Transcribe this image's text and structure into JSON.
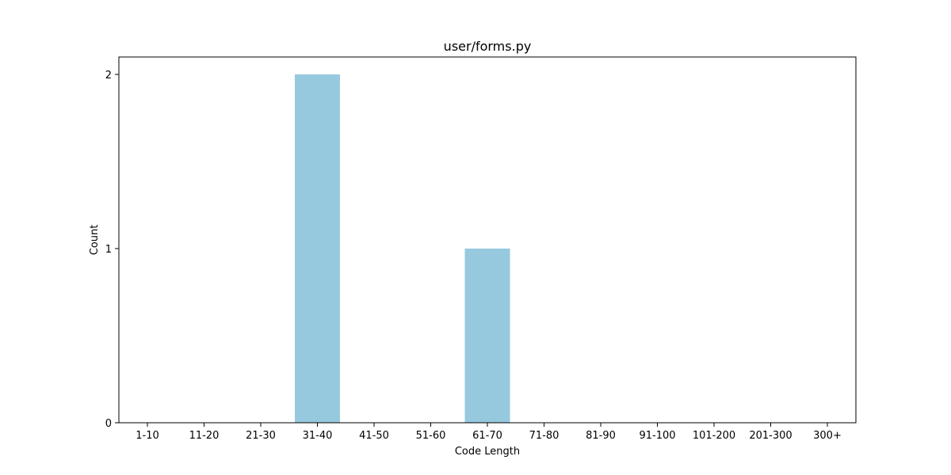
{
  "chart_data": {
    "type": "bar",
    "title": "user/forms.py",
    "xlabel": "Code Length",
    "ylabel": "Count",
    "categories": [
      "1-10",
      "11-20",
      "21-30",
      "31-40",
      "41-50",
      "51-60",
      "61-70",
      "71-80",
      "81-90",
      "91-100",
      "101-200",
      "201-300",
      "300+"
    ],
    "values": [
      0,
      0,
      0,
      2,
      0,
      0,
      1,
      0,
      0,
      0,
      0,
      0,
      0
    ],
    "ylim": [
      0,
      2.1
    ],
    "yticks": [
      0,
      1,
      2
    ],
    "grid": false,
    "bar_color": "#96c9de"
  }
}
